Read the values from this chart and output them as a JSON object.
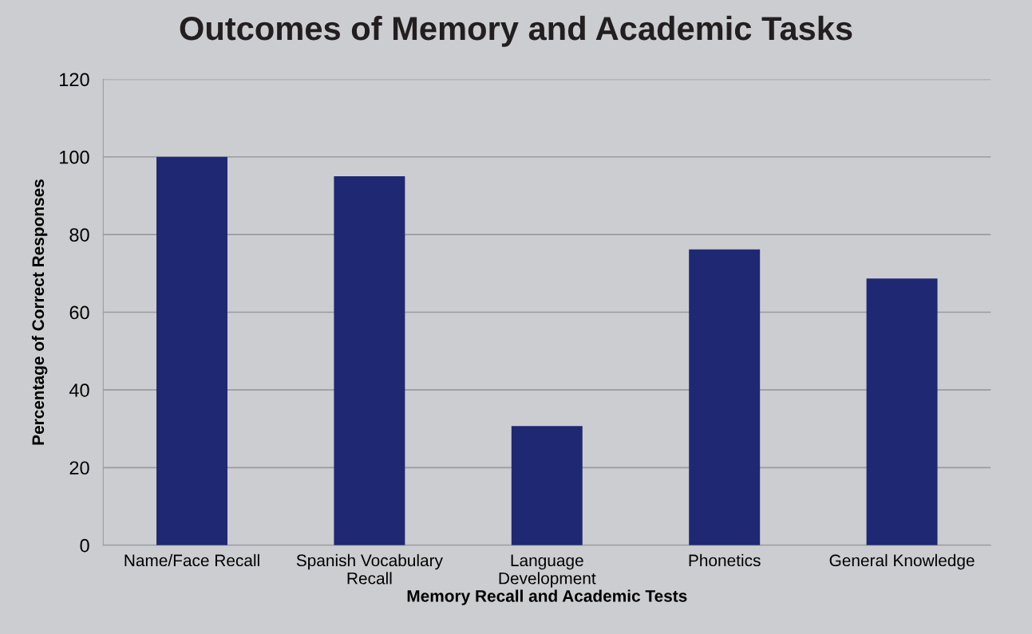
{
  "chart_data": {
    "type": "bar",
    "title": "Outcomes of Memory and Academic Tasks",
    "xlabel": "Memory Recall and Academic Tests",
    "ylabel": "Percentage of Correct Responses",
    "categories": [
      "Name/Face Recall",
      "Spanish Vocabulary\nRecall",
      "Language\nDevelopment",
      "Phonetics",
      "General Knowledge"
    ],
    "values": [
      100,
      95,
      30.7,
      76.2,
      68.7
    ],
    "color": "#1f2872",
    "ylim": [
      0,
      120
    ],
    "yticks": [
      0,
      20,
      40,
      60,
      80,
      100,
      120
    ],
    "grid": "y",
    "legend": false
  }
}
